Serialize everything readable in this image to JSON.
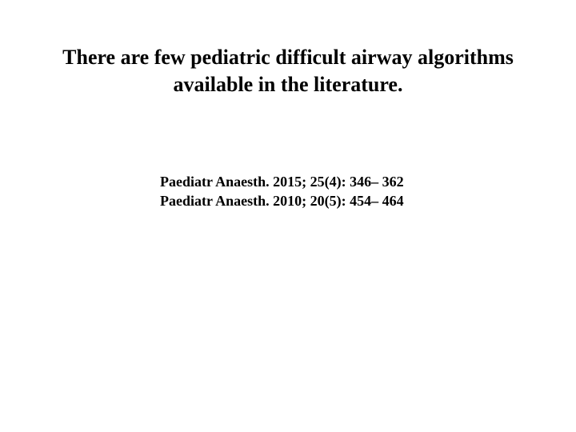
{
  "slide": {
    "title": "There are few pediatric difficult airway algorithms available in the literature.",
    "citations": [
      "Paediatr Anaesth. 2015; 25(4): 346– 362",
      "Paediatr Anaesth. 2010; 20(5): 454– 464"
    ],
    "background_color": "#ffffff",
    "text_color": "#000000",
    "title_fontsize": 26,
    "citation_fontsize": 18
  }
}
